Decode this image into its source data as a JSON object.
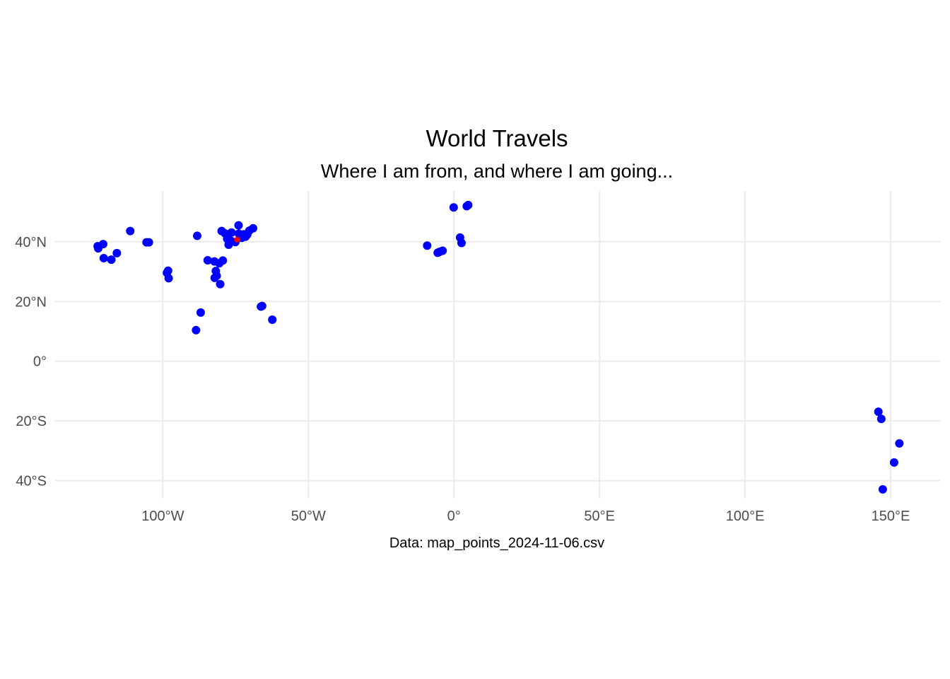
{
  "chart_data": {
    "type": "scatter",
    "title": "World Travels",
    "subtitle": "Where I am from, and where I am going...",
    "caption": "Data: map_points_2024-11-06.csv",
    "xlabel": "",
    "ylabel": "",
    "xlim": [
      -137,
      167
    ],
    "ylim": [
      -46,
      57
    ],
    "x_ticks": [
      {
        "value": -100,
        "label": "100°W"
      },
      {
        "value": -50,
        "label": "50°W"
      },
      {
        "value": 0,
        "label": "0°"
      },
      {
        "value": 50,
        "label": "50°E"
      },
      {
        "value": 100,
        "label": "100°E"
      },
      {
        "value": 150,
        "label": "150°E"
      }
    ],
    "y_ticks": [
      {
        "value": 40,
        "label": "40°N"
      },
      {
        "value": 20,
        "label": "20°N"
      },
      {
        "value": 0,
        "label": "0°"
      },
      {
        "value": -20,
        "label": "20°S"
      },
      {
        "value": -40,
        "label": "40°S"
      }
    ],
    "grid": true,
    "colors": {
      "point": "#0000ff",
      "highlight": "#ff0000",
      "grid": "#ebebeb",
      "tick": "#4d4d4d"
    },
    "highlight_point": {
      "lon": -74.5,
      "lat": 40.7
    },
    "points": [
      {
        "lon": -122.4,
        "lat": 38.5
      },
      {
        "lon": -122.2,
        "lat": 37.8
      },
      {
        "lon": -120.5,
        "lat": 39.2
      },
      {
        "lon": -120.3,
        "lat": 34.5
      },
      {
        "lon": -117.7,
        "lat": 34.0
      },
      {
        "lon": -115.8,
        "lat": 36.2
      },
      {
        "lon": -111.2,
        "lat": 43.6
      },
      {
        "lon": -105.6,
        "lat": 39.8
      },
      {
        "lon": -104.8,
        "lat": 39.8
      },
      {
        "lon": -98.6,
        "lat": 29.6
      },
      {
        "lon": -98.2,
        "lat": 30.3
      },
      {
        "lon": -98.0,
        "lat": 27.8
      },
      {
        "lon": -88.2,
        "lat": 42.0
      },
      {
        "lon": -87.0,
        "lat": 16.3
      },
      {
        "lon": -88.6,
        "lat": 10.4
      },
      {
        "lon": -84.6,
        "lat": 33.8
      },
      {
        "lon": -82.3,
        "lat": 33.4
      },
      {
        "lon": -81.8,
        "lat": 30.2
      },
      {
        "lon": -82.2,
        "lat": 27.9
      },
      {
        "lon": -81.5,
        "lat": 28.6
      },
      {
        "lon": -80.3,
        "lat": 25.8
      },
      {
        "lon": -79.8,
        "lat": 43.6
      },
      {
        "lon": -79.4,
        "lat": 33.7
      },
      {
        "lon": -80.6,
        "lat": 32.8
      },
      {
        "lon": -78.6,
        "lat": 42.8
      },
      {
        "lon": -77.9,
        "lat": 41.0
      },
      {
        "lon": -77.4,
        "lat": 39.0
      },
      {
        "lon": -76.6,
        "lat": 40.3
      },
      {
        "lon": -76.4,
        "lat": 43.1
      },
      {
        "lon": -75.1,
        "lat": 39.9
      },
      {
        "lon": -74.0,
        "lat": 45.5
      },
      {
        "lon": -73.9,
        "lat": 42.7
      },
      {
        "lon": -72.9,
        "lat": 41.3
      },
      {
        "lon": -72.2,
        "lat": 42.5
      },
      {
        "lon": -71.6,
        "lat": 41.7
      },
      {
        "lon": -71.0,
        "lat": 42.4
      },
      {
        "lon": -70.3,
        "lat": 43.7
      },
      {
        "lon": -69.0,
        "lat": 44.5
      },
      {
        "lon": -66.3,
        "lat": 18.3
      },
      {
        "lon": -65.9,
        "lat": 18.5
      },
      {
        "lon": -62.4,
        "lat": 13.9
      },
      {
        "lon": -9.2,
        "lat": 38.7
      },
      {
        "lon": -5.6,
        "lat": 36.3
      },
      {
        "lon": -5.0,
        "lat": 36.6
      },
      {
        "lon": -3.9,
        "lat": 37.0
      },
      {
        "lon": -0.1,
        "lat": 51.5
      },
      {
        "lon": 2.1,
        "lat": 41.4
      },
      {
        "lon": 2.6,
        "lat": 39.6
      },
      {
        "lon": 4.4,
        "lat": 51.9
      },
      {
        "lon": 4.9,
        "lat": 52.3
      },
      {
        "lon": 145.8,
        "lat": -16.9
      },
      {
        "lon": 146.8,
        "lat": -19.3
      },
      {
        "lon": 153.0,
        "lat": -27.5
      },
      {
        "lon": 151.2,
        "lat": -33.9
      },
      {
        "lon": 147.3,
        "lat": -42.9
      }
    ]
  }
}
